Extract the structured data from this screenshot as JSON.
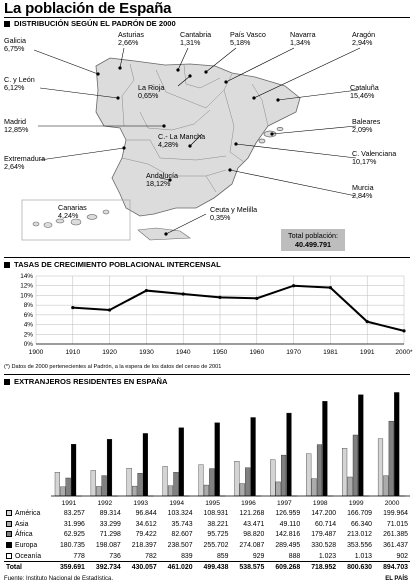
{
  "title": "La población de España",
  "map_section": {
    "heading": "DISTRIBUCIÓN SEGÚN EL PADRÓN DE 2000",
    "regions": [
      {
        "name": "Galicia",
        "value": "6,75%"
      },
      {
        "name": "Asturias",
        "value": "2,66%"
      },
      {
        "name": "Cantabria",
        "value": "1,31%"
      },
      {
        "name": "País Vasco",
        "value": "5,18%"
      },
      {
        "name": "Navarra",
        "value": "1,34%"
      },
      {
        "name": "Aragón",
        "value": "2,94%"
      },
      {
        "name": "C. y León",
        "value": "6,12%"
      },
      {
        "name": "La Rioja",
        "value": "0,65%"
      },
      {
        "name": "Cataluña",
        "value": "15,46%"
      },
      {
        "name": "Madrid",
        "value": "12,85%"
      },
      {
        "name": "Baleares",
        "value": "2,09%"
      },
      {
        "name": "C.- La Mancha",
        "value": "4,28%"
      },
      {
        "name": "C. Valenciana",
        "value": "10,17%"
      },
      {
        "name": "Extremadura",
        "value": "2,64%"
      },
      {
        "name": "Andalucía",
        "value": "18,12%"
      },
      {
        "name": "Murcia",
        "value": "2,84%"
      },
      {
        "name": "Canarias",
        "value": "4,24%"
      },
      {
        "name": "Ceuta y Melilla",
        "value": "0,35%"
      }
    ],
    "total_label": "Total población:",
    "total_value": "40.499.791"
  },
  "growth_section": {
    "heading": "TASAS DE CRECIMIENTO POBLACIONAL INTERCENSAL",
    "note": "(*) Datos de 2000 pertenecientes al Padrón, a la espera de los datos del censo de 2001"
  },
  "foreign_section": {
    "heading": "EXTRANJEROS RESIDENTES EN ESPAÑA",
    "total_label": "Total"
  },
  "source": "Fuente: Instituto Nacional de Estadística.",
  "brand": "EL PAÍS",
  "colors": {
    "america": "#d4d4d4",
    "asia": "#ababab",
    "africa": "#808080",
    "europa": "#000000",
    "oceania": "#ffffff",
    "map_fill": "#dcdcdc",
    "total_box": "#bdbdbd"
  },
  "chart_data": [
    {
      "type": "line",
      "title": "TASAS DE CRECIMIENTO POBLACIONAL INTERCENSAL",
      "x": [
        "1900",
        "1910",
        "1920",
        "1930",
        "1940",
        "1950",
        "1960",
        "1970",
        "1981",
        "1991",
        "2000*"
      ],
      "series": [
        {
          "values": [
            null,
            7.5,
            7.0,
            11.0,
            10.3,
            9.6,
            9.4,
            12.0,
            11.6,
            4.6,
            2.7
          ]
        }
      ],
      "y_ticks": [
        "0%",
        "2%",
        "4%",
        "6%",
        "8%",
        "10%",
        "12%",
        "14%"
      ],
      "ylim": [
        0,
        14
      ],
      "grid": true,
      "xlabel": "",
      "ylabel": ""
    },
    {
      "type": "bar",
      "title": "EXTRANJEROS RESIDENTES EN ESPAÑA",
      "categories": [
        "1991",
        "1992",
        "1993",
        "1994",
        "1995",
        "1996",
        "1997",
        "1998",
        "1999",
        "2000"
      ],
      "series": [
        {
          "name": "América",
          "values": [
            83257,
            89314,
            96844,
            103324,
            108931,
            121268,
            126959,
            147200,
            166709,
            199964
          ],
          "display": [
            "83.257",
            "89.314",
            "96.844",
            "103.324",
            "108.931",
            "121.268",
            "126.959",
            "147.200",
            "166.709",
            "199.964"
          ]
        },
        {
          "name": "Asia",
          "values": [
            31996,
            33299,
            34612,
            35743,
            38221,
            43471,
            49110,
            60714,
            66340,
            71015
          ],
          "display": [
            "31.996",
            "33.299",
            "34.612",
            "35.743",
            "38.221",
            "43.471",
            "49.110",
            "60.714",
            "66.340",
            "71.015"
          ]
        },
        {
          "name": "África",
          "values": [
            62925,
            71298,
            79422,
            82607,
            95725,
            98820,
            142816,
            179487,
            213012,
            261385
          ],
          "display": [
            "62.925",
            "71.298",
            "79.422",
            "82.607",
            "95.725",
            "98.820",
            "142.816",
            "179.487",
            "213.012",
            "261.385"
          ]
        },
        {
          "name": "Europa",
          "values": [
            180735,
            198087,
            218397,
            238507,
            255702,
            274087,
            289495,
            330528,
            353556,
            361437
          ],
          "display": [
            "180.735",
            "198.087",
            "218.397",
            "238.507",
            "255.702",
            "274.087",
            "289.495",
            "330.528",
            "353.556",
            "361.437"
          ]
        },
        {
          "name": "Oceanía",
          "values": [
            778,
            736,
            782,
            839,
            859,
            929,
            888,
            1023,
            1013,
            902
          ],
          "display": [
            "778",
            "736",
            "782",
            "839",
            "859",
            "929",
            "888",
            "1.023",
            "1.013",
            "902"
          ]
        }
      ],
      "totals": [
        "359.691",
        "392.734",
        "430.057",
        "461.020",
        "499.438",
        "538.575",
        "609.268",
        "718.952",
        "800.630",
        "894.703"
      ],
      "ylim": [
        0,
        370000
      ],
      "xlabel": "",
      "ylabel": ""
    }
  ]
}
